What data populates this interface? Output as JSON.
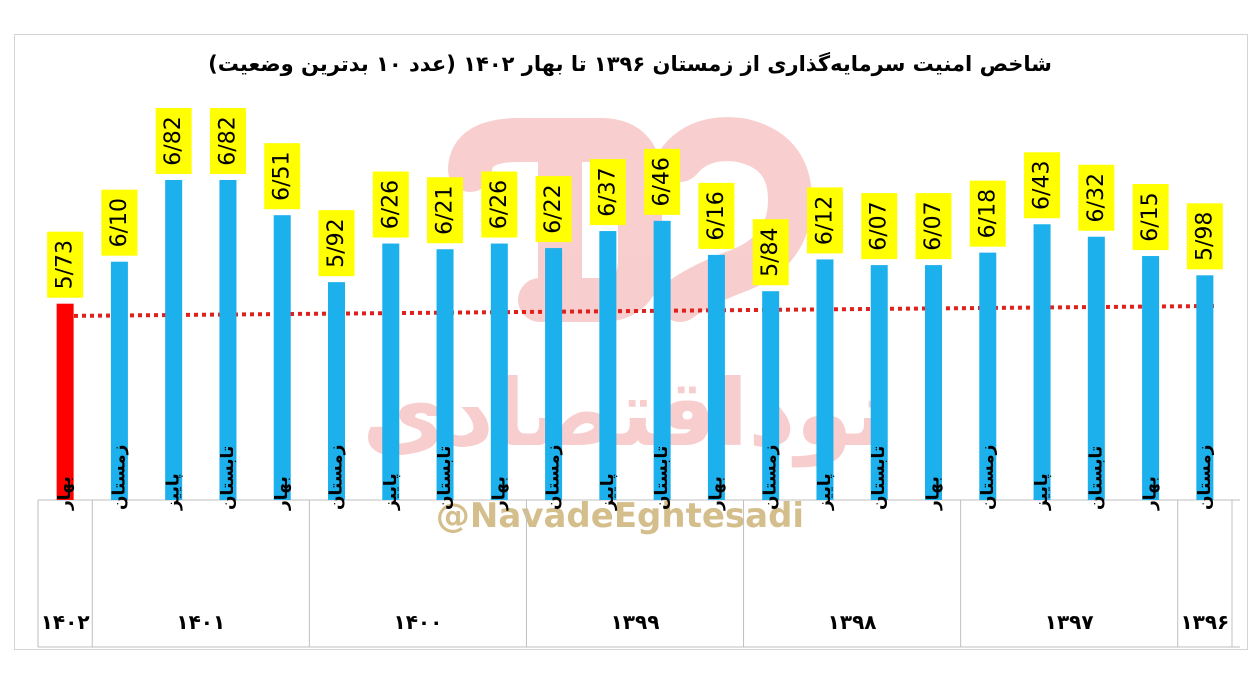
{
  "title": "شاخص امنیت سرمایه‌گذاری از زمستان ۱۳۹۶ تا بهار ۱۴۰۲ (عدد ۱۰ بدترین وضعیت)",
  "watermark": {
    "name": "نوداقتصادی",
    "handle": "@NavadeEghtesadi"
  },
  "colors": {
    "bar": "#1CB0EC",
    "highlight_bar": "#FF0000",
    "label_bg": "#FFFF00",
    "trend": "#E0201C",
    "grid": "#BFBFBF"
  },
  "chart_data": {
    "type": "bar",
    "title": "شاخص امنیت سرمایه‌گذاری از زمستان ۱۳۹۶ تا بهار ۱۴۰۲ (عدد ۱۰ بدترین وضعیت)",
    "categories": [
      "زمستان",
      "بهار",
      "تابستان",
      "پاییز",
      "زمستان",
      "بهار",
      "تابستان",
      "پاییز",
      "زمستان",
      "بهار",
      "تابستان",
      "پاییز",
      "زمستان",
      "بهار",
      "تابستان",
      "پاییز",
      "زمستان",
      "بهار",
      "تابستان",
      "پاییز",
      "زمستان",
      "بهار"
    ],
    "years": [
      {
        "label": "۱۳۹۶",
        "count": 1
      },
      {
        "label": "۱۳۹۷",
        "count": 4
      },
      {
        "label": "۱۳۹۸",
        "count": 4
      },
      {
        "label": "۱۳۹۹",
        "count": 4
      },
      {
        "label": "۱۴۰۰",
        "count": 4
      },
      {
        "label": "۱۴۰۱",
        "count": 4
      },
      {
        "label": "۱۴۰۲",
        "count": 1
      }
    ],
    "values": [
      5.98,
      6.15,
      6.32,
      6.43,
      6.18,
      6.07,
      6.07,
      6.12,
      5.84,
      6.16,
      6.46,
      6.37,
      6.22,
      6.26,
      6.21,
      6.26,
      5.92,
      6.51,
      6.82,
      6.82,
      6.1,
      5.73
    ],
    "value_labels": [
      "5/98",
      "6/15",
      "6/32",
      "6/43",
      "6/18",
      "6/07",
      "6/07",
      "6/12",
      "5/84",
      "6/16",
      "6/46",
      "6/37",
      "6/22",
      "6/26",
      "6/21",
      "6/26",
      "5/92",
      "6/51",
      "6/82",
      "6/82",
      "6/10",
      "5/73"
    ],
    "highlight_index": 21,
    "trend_line": {
      "start": 5.73,
      "end": 5.73
    },
    "ylim": [
      4.0,
      7.2
    ],
    "xlabel": "",
    "ylabel": ""
  }
}
